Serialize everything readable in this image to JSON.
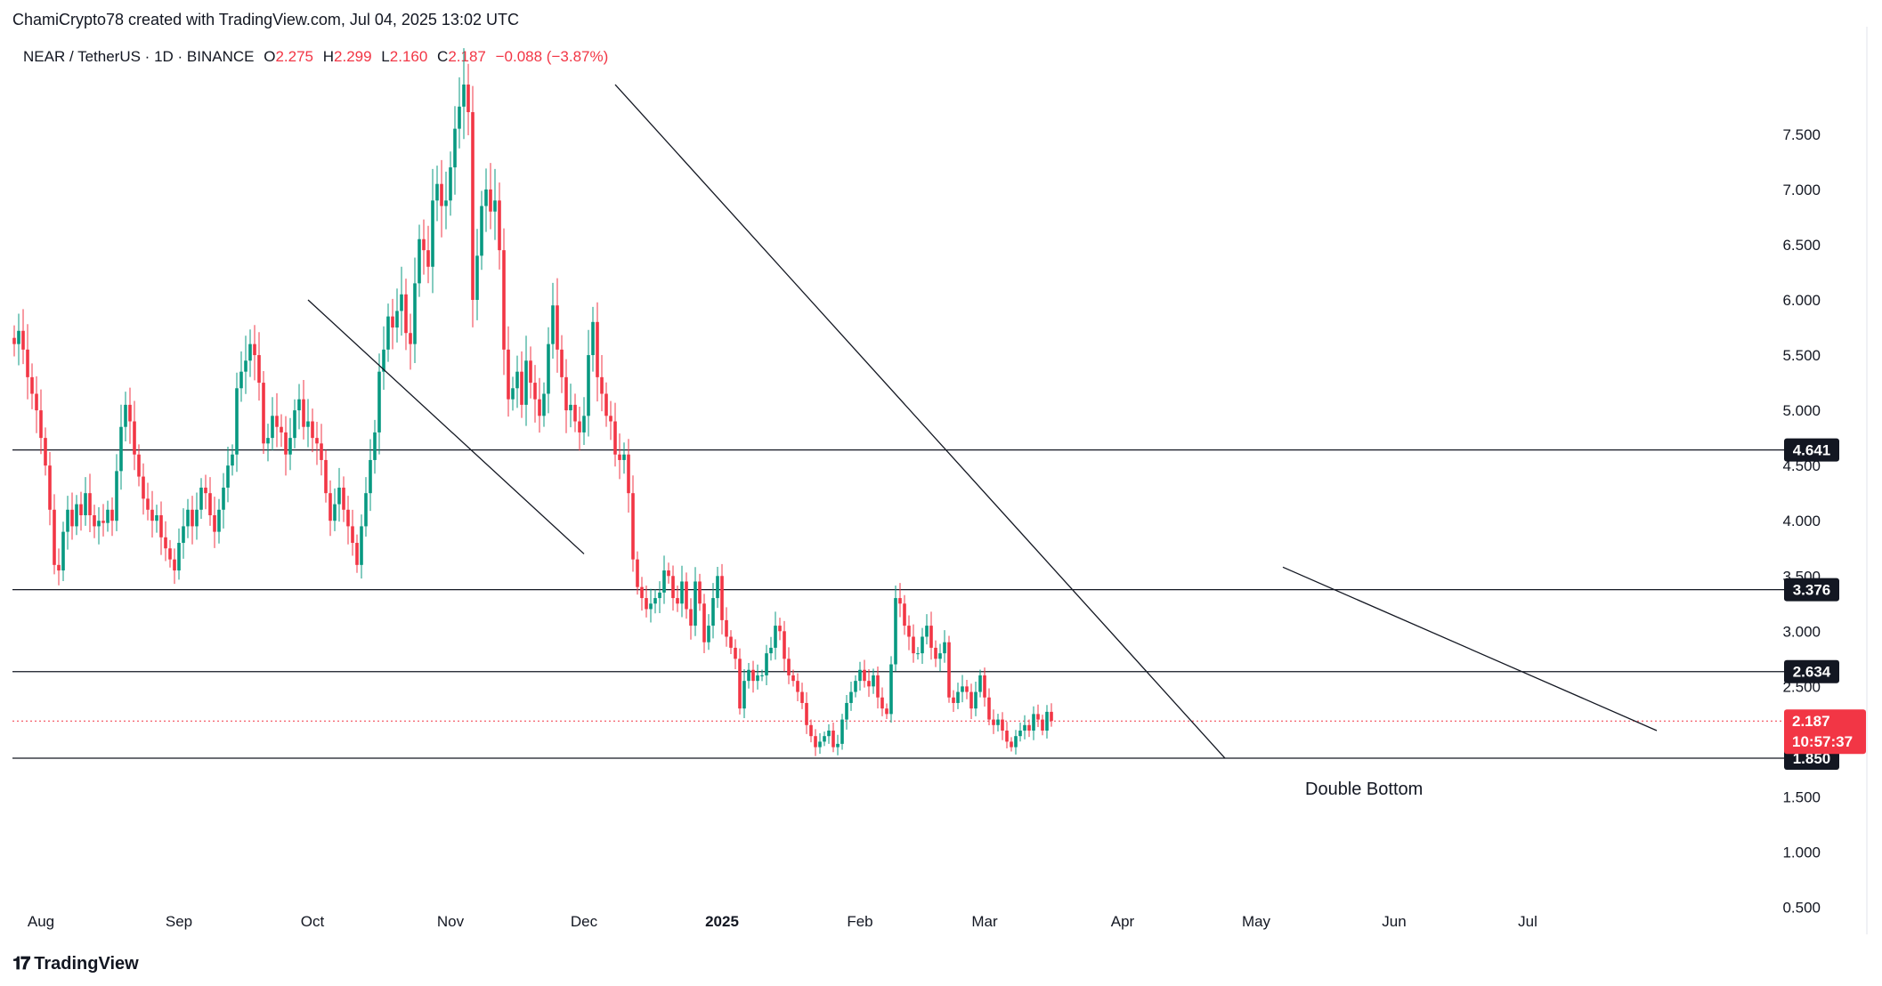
{
  "header": {
    "attribution": "ChamiCrypto78 created with TradingView.com, Jul 04, 2025 13:02 UTC"
  },
  "legend": {
    "symbol": "NEAR / TetherUS · 1D · BINANCE",
    "open_label": "O",
    "open": "2.275",
    "high_label": "H",
    "high": "2.299",
    "low_label": "L",
    "low": "2.160",
    "close_label": "C",
    "close": "2.187",
    "change": "−0.088 (−3.87%)"
  },
  "footer": {
    "brand": "TradingView",
    "logo_icon": "tradingview-logo-icon"
  },
  "colors": {
    "up": "#089981",
    "down": "#f23645",
    "line": "#131722",
    "price_tag": "#f23645",
    "level_tag": "#131722"
  },
  "chart_data": {
    "type": "candlestick",
    "title": "NEAR / TetherUS · 1D · BINANCE",
    "ylim": [
      0.1,
      8.3
    ],
    "y_ticks": [
      "0.500",
      "1.000",
      "1.500",
      "2.500",
      "3.000",
      "3.500",
      "4.000",
      "4.500",
      "5.000",
      "5.500",
      "6.000",
      "6.500",
      "7.000",
      "7.500"
    ],
    "x_ticks": [
      "Aug",
      "Sep",
      "Oct",
      "Nov",
      "Dec",
      "2025",
      "Feb",
      "Mar",
      "Apr",
      "May",
      "Jun",
      "Jul"
    ],
    "x_tick_days": [
      -4,
      27,
      57,
      88,
      118,
      149,
      180,
      208,
      239,
      269,
      300,
      330
    ],
    "horizontal_levels": [
      {
        "value": 4.641,
        "label": "4.641"
      },
      {
        "value": 3.376,
        "label": "3.376"
      },
      {
        "value": 2.634,
        "label": "2.634"
      },
      {
        "value": 1.85,
        "label": "1.850"
      }
    ],
    "current_price": {
      "value": 2.187,
      "label": "2.187",
      "countdown": "10:57:37"
    },
    "trendlines": [
      {
        "from": [
          56,
          6.0
        ],
        "to": [
          118,
          3.7
        ]
      },
      {
        "from": [
          125,
          7.95
        ],
        "to": [
          262,
          1.85
        ]
      },
      {
        "from": [
          275,
          3.58
        ],
        "to": [
          359,
          2.1
        ]
      }
    ],
    "annotation": {
      "text": "Double Bottom",
      "at": [
        280,
        1.6
      ]
    },
    "closes": [
      [
        -10,
        5.6
      ],
      [
        -9,
        5.72
      ],
      [
        -8,
        5.55
      ],
      [
        -7,
        5.3
      ],
      [
        -6,
        5.15
      ],
      [
        -5,
        5.0
      ],
      [
        -4,
        4.75
      ],
      [
        -3,
        4.5
      ],
      [
        -2,
        4.1
      ],
      [
        -1,
        3.6
      ],
      [
        0,
        3.55
      ],
      [
        1,
        3.9
      ],
      [
        2,
        4.1
      ],
      [
        3,
        3.95
      ],
      [
        4,
        4.15
      ],
      [
        5,
        4.05
      ],
      [
        6,
        4.25
      ],
      [
        7,
        4.05
      ],
      [
        8,
        3.95
      ],
      [
        9,
        4.0
      ],
      [
        10,
        3.98
      ],
      [
        11,
        4.1
      ],
      [
        12,
        4.0
      ],
      [
        13,
        4.45
      ],
      [
        14,
        4.85
      ],
      [
        15,
        5.05
      ],
      [
        16,
        4.9
      ],
      [
        17,
        4.6
      ],
      [
        18,
        4.4
      ],
      [
        19,
        4.2
      ],
      [
        20,
        4.1
      ],
      [
        21,
        4.0
      ],
      [
        22,
        4.05
      ],
      [
        23,
        3.85
      ],
      [
        24,
        3.75
      ],
      [
        25,
        3.65
      ],
      [
        26,
        3.55
      ],
      [
        27,
        3.8
      ],
      [
        28,
        3.95
      ],
      [
        29,
        4.1
      ],
      [
        30,
        3.95
      ],
      [
        31,
        4.1
      ],
      [
        32,
        4.3
      ],
      [
        33,
        4.25
      ],
      [
        34,
        4.05
      ],
      [
        35,
        3.9
      ],
      [
        36,
        4.1
      ],
      [
        37,
        4.3
      ],
      [
        38,
        4.5
      ],
      [
        39,
        4.6
      ],
      [
        40,
        5.2
      ],
      [
        41,
        5.35
      ],
      [
        42,
        5.45
      ],
      [
        43,
        5.6
      ],
      [
        44,
        5.5
      ],
      [
        45,
        5.25
      ],
      [
        46,
        4.7
      ],
      [
        47,
        4.75
      ],
      [
        48,
        4.95
      ],
      [
        49,
        4.85
      ],
      [
        50,
        4.8
      ],
      [
        51,
        4.6
      ],
      [
        52,
        4.75
      ],
      [
        53,
        5.0
      ],
      [
        54,
        5.1
      ],
      [
        55,
        4.85
      ],
      [
        56,
        4.9
      ],
      [
        57,
        4.75
      ],
      [
        58,
        4.7
      ],
      [
        59,
        4.55
      ],
      [
        60,
        4.25
      ],
      [
        61,
        4.0
      ],
      [
        62,
        4.15
      ],
      [
        63,
        4.3
      ],
      [
        64,
        4.1
      ],
      [
        65,
        3.95
      ],
      [
        66,
        3.8
      ],
      [
        67,
        3.6
      ],
      [
        68,
        3.95
      ],
      [
        69,
        4.25
      ],
      [
        70,
        4.55
      ],
      [
        71,
        4.8
      ],
      [
        72,
        5.35
      ],
      [
        73,
        5.55
      ],
      [
        74,
        5.85
      ],
      [
        75,
        5.75
      ],
      [
        76,
        5.9
      ],
      [
        77,
        6.05
      ],
      [
        78,
        5.7
      ],
      [
        79,
        5.6
      ],
      [
        80,
        6.15
      ],
      [
        81,
        6.55
      ],
      [
        82,
        6.45
      ],
      [
        83,
        6.3
      ],
      [
        84,
        6.9
      ],
      [
        85,
        7.05
      ],
      [
        86,
        6.85
      ],
      [
        87,
        6.9
      ],
      [
        88,
        7.2
      ],
      [
        89,
        7.55
      ],
      [
        90,
        7.75
      ],
      [
        91,
        7.95
      ],
      [
        92,
        7.7
      ],
      [
        93,
        6.0
      ],
      [
        94,
        6.4
      ],
      [
        95,
        6.85
      ],
      [
        96,
        7.0
      ],
      [
        97,
        6.8
      ],
      [
        98,
        6.9
      ],
      [
        99,
        6.45
      ],
      [
        100,
        5.55
      ],
      [
        101,
        5.1
      ],
      [
        102,
        5.2
      ],
      [
        103,
        5.35
      ],
      [
        104,
        5.05
      ],
      [
        105,
        5.45
      ],
      [
        106,
        5.25
      ],
      [
        107,
        5.1
      ],
      [
        108,
        4.95
      ],
      [
        109,
        5.15
      ],
      [
        110,
        5.6
      ],
      [
        111,
        5.95
      ],
      [
        112,
        5.55
      ],
      [
        113,
        5.3
      ],
      [
        114,
        5.0
      ],
      [
        115,
        5.05
      ],
      [
        116,
        4.9
      ],
      [
        117,
        4.8
      ],
      [
        118,
        4.95
      ],
      [
        119,
        5.5
      ],
      [
        120,
        5.8
      ],
      [
        121,
        5.3
      ],
      [
        122,
        5.15
      ],
      [
        123,
        4.95
      ],
      [
        124,
        4.9
      ],
      [
        125,
        4.6
      ],
      [
        126,
        4.55
      ],
      [
        127,
        4.6
      ],
      [
        128,
        4.25
      ],
      [
        129,
        3.65
      ],
      [
        130,
        3.4
      ],
      [
        131,
        3.3
      ],
      [
        132,
        3.2
      ],
      [
        133,
        3.25
      ],
      [
        134,
        3.3
      ],
      [
        135,
        3.35
      ],
      [
        136,
        3.55
      ],
      [
        137,
        3.5
      ],
      [
        138,
        3.3
      ],
      [
        139,
        3.25
      ],
      [
        140,
        3.45
      ],
      [
        141,
        3.2
      ],
      [
        142,
        3.05
      ],
      [
        143,
        3.45
      ],
      [
        144,
        3.25
      ],
      [
        145,
        2.9
      ],
      [
        146,
        3.05
      ],
      [
        147,
        3.3
      ],
      [
        148,
        3.5
      ],
      [
        149,
        3.1
      ],
      [
        150,
        2.95
      ],
      [
        151,
        2.85
      ],
      [
        152,
        2.75
      ],
      [
        153,
        2.3
      ],
      [
        154,
        2.55
      ],
      [
        155,
        2.65
      ],
      [
        156,
        2.55
      ],
      [
        157,
        2.6
      ],
      [
        158,
        2.6
      ],
      [
        159,
        2.8
      ],
      [
        160,
        2.85
      ],
      [
        161,
        3.05
      ],
      [
        162,
        3.0
      ],
      [
        163,
        2.75
      ],
      [
        164,
        2.6
      ],
      [
        165,
        2.55
      ],
      [
        166,
        2.45
      ],
      [
        167,
        2.35
      ],
      [
        168,
        2.15
      ],
      [
        169,
        2.05
      ],
      [
        170,
        1.95
      ],
      [
        171,
        2.0
      ],
      [
        172,
        2.05
      ],
      [
        173,
        2.1
      ],
      [
        174,
        1.95
      ],
      [
        175,
        1.98
      ],
      [
        176,
        2.2
      ],
      [
        177,
        2.35
      ],
      [
        178,
        2.45
      ],
      [
        179,
        2.55
      ],
      [
        180,
        2.65
      ],
      [
        181,
        2.55
      ],
      [
        182,
        2.5
      ],
      [
        183,
        2.6
      ],
      [
        184,
        2.4
      ],
      [
        185,
        2.3
      ],
      [
        186,
        2.25
      ],
      [
        187,
        2.7
      ],
      [
        188,
        3.3
      ],
      [
        189,
        3.25
      ],
      [
        190,
        3.05
      ],
      [
        191,
        2.95
      ],
      [
        192,
        2.8
      ],
      [
        193,
        2.8
      ],
      [
        194,
        2.95
      ],
      [
        195,
        3.05
      ],
      [
        196,
        2.85
      ],
      [
        197,
        2.75
      ],
      [
        198,
        2.8
      ],
      [
        199,
        2.9
      ],
      [
        200,
        2.4
      ],
      [
        201,
        2.35
      ],
      [
        202,
        2.45
      ],
      [
        203,
        2.5
      ],
      [
        204,
        2.45
      ],
      [
        205,
        2.3
      ],
      [
        206,
        2.45
      ],
      [
        207,
        2.6
      ],
      [
        208,
        2.4
      ],
      [
        209,
        2.2
      ],
      [
        210,
        2.15
      ],
      [
        211,
        2.2
      ],
      [
        212,
        2.1
      ],
      [
        213,
        2.0
      ],
      [
        214,
        1.95
      ],
      [
        215,
        2.05
      ],
      [
        216,
        2.1
      ],
      [
        217,
        2.15
      ],
      [
        218,
        2.1
      ],
      [
        219,
        2.25
      ],
      [
        220,
        2.2
      ],
      [
        221,
        2.1
      ],
      [
        222,
        2.27
      ],
      [
        223,
        2.187
      ]
    ]
  }
}
